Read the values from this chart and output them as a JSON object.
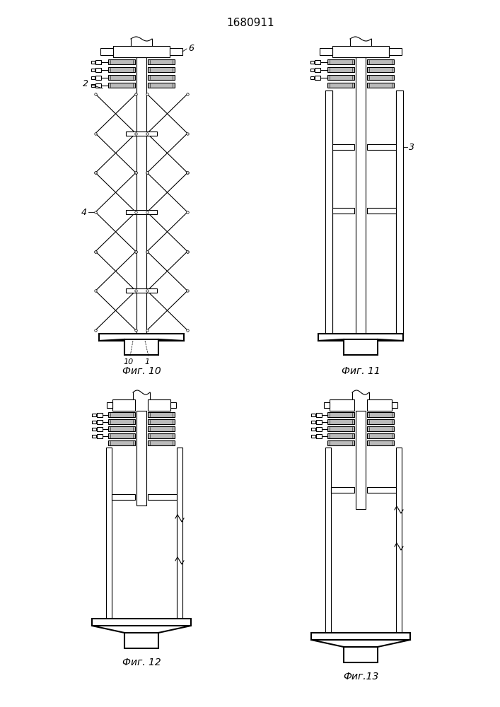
{
  "title": "1680911",
  "title_fontsize": 11,
  "background_color": "#ffffff",
  "line_color": "#000000",
  "gray_fill": "#bbbbbb",
  "fig10_label": "Фиг. 10",
  "fig11_label": "Фиг. 11",
  "fig12_label": "Фиг. 12",
  "fig13_label": "Фиг.13",
  "label2": "2",
  "label3": "3",
  "label4": "4",
  "label6": "6",
  "label10": "10",
  "label1": "1"
}
